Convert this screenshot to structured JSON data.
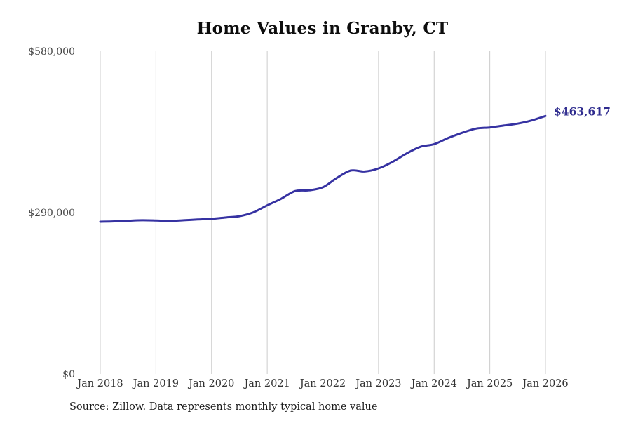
{
  "chart_data": {
    "type": "line",
    "title": "Home Values in Granby, CT",
    "source_note": "Source: Zillow. Data represents monthly typical home value",
    "series_name": "Monthly typical home value",
    "ylim": [
      0,
      580000
    ],
    "grid": "vertical-only",
    "legend": "none",
    "end_label": "$463,617",
    "end_value": 463617,
    "colors": {
      "line": "#3632a2",
      "end_label": "#2e2b8e",
      "gridline": "#cccccc",
      "y_tick_text": "#444444",
      "x_tick_text": "#333333",
      "title_text": "#0d0d0d",
      "source_text": "#1c1c1c",
      "background": "#ffffff"
    },
    "y_ticks": [
      {
        "label": "$0",
        "value": 0
      },
      {
        "label": "$290,000",
        "value": 290000
      },
      {
        "label": "$580,000",
        "value": 580000
      }
    ],
    "x_tick_labels": [
      "Jan 2018",
      "Jan 2019",
      "Jan 2020",
      "Jan 2021",
      "Jan 2022",
      "Jan 2023",
      "Jan 2024",
      "Jan 2025",
      "Jan 2026"
    ],
    "points": [
      {
        "date": "2018-01",
        "value": 273600
      },
      {
        "date": "2018-04",
        "value": 274200
      },
      {
        "date": "2018-07",
        "value": 275300
      },
      {
        "date": "2018-10",
        "value": 276300
      },
      {
        "date": "2019-01",
        "value": 275800
      },
      {
        "date": "2019-04",
        "value": 274900
      },
      {
        "date": "2019-07",
        "value": 276300
      },
      {
        "date": "2019-10",
        "value": 277600
      },
      {
        "date": "2020-01",
        "value": 278800
      },
      {
        "date": "2020-04",
        "value": 281200
      },
      {
        "date": "2020-07",
        "value": 283600
      },
      {
        "date": "2020-10",
        "value": 290500
      },
      {
        "date": "2021-01",
        "value": 303000
      },
      {
        "date": "2021-04",
        "value": 314800
      },
      {
        "date": "2021-07",
        "value": 328700
      },
      {
        "date": "2021-10",
        "value": 330100
      },
      {
        "date": "2022-01",
        "value": 335500
      },
      {
        "date": "2022-04",
        "value": 352300
      },
      {
        "date": "2022-07",
        "value": 365600
      },
      {
        "date": "2022-10",
        "value": 363900
      },
      {
        "date": "2023-01",
        "value": 369400
      },
      {
        "date": "2023-04",
        "value": 381000
      },
      {
        "date": "2023-07",
        "value": 396000
      },
      {
        "date": "2023-10",
        "value": 408100
      },
      {
        "date": "2024-01",
        "value": 413000
      },
      {
        "date": "2024-04",
        "value": 424000
      },
      {
        "date": "2024-07",
        "value": 433300
      },
      {
        "date": "2024-10",
        "value": 440900
      },
      {
        "date": "2025-01",
        "value": 443000
      },
      {
        "date": "2025-04",
        "value": 446500
      },
      {
        "date": "2025-07",
        "value": 449900
      },
      {
        "date": "2025-10",
        "value": 455500
      },
      {
        "date": "2026-01",
        "value": 463617
      }
    ]
  }
}
